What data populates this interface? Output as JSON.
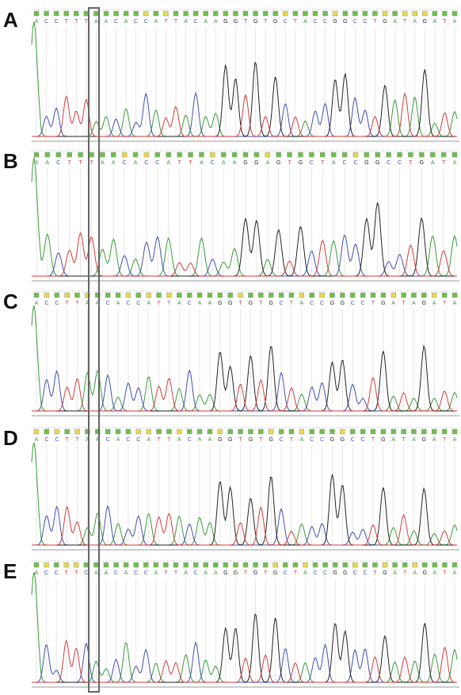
{
  "panels": [
    {
      "label": "A",
      "bases": [
        "A",
        "C",
        "C",
        "T",
        "T",
        "T",
        "A",
        "A",
        "C",
        "A",
        "C",
        "C",
        "A",
        "T",
        "T",
        "A",
        "C",
        "A",
        "A",
        "G",
        "G",
        "T",
        "G",
        "T",
        "G",
        "C",
        "T",
        "A",
        "C",
        "C",
        "G",
        "G",
        "C",
        "C",
        "T",
        "G",
        "A",
        "T",
        "A",
        "G",
        "A",
        "T",
        "A"
      ]
    },
    {
      "label": "B",
      "bases": [
        "A",
        "A",
        "C",
        "T",
        "T",
        "T",
        "A",
        "A",
        "C",
        "A",
        "C",
        "C",
        "A",
        "T",
        "T",
        "A",
        "C",
        "A",
        "A",
        "G",
        "G",
        "A",
        "G",
        "T",
        "G",
        "C",
        "T",
        "A",
        "C",
        "C",
        "G",
        "G",
        "C",
        "C",
        "T",
        "G",
        "A",
        "T",
        "A"
      ]
    },
    {
      "label": "C",
      "bases": [
        "A",
        "C",
        "C",
        "T",
        "T",
        "A",
        "A",
        "C",
        "A",
        "C",
        "C",
        "A",
        "T",
        "T",
        "A",
        "C",
        "A",
        "A",
        "G",
        "G",
        "T",
        "G",
        "T",
        "G",
        "C",
        "T",
        "A",
        "C",
        "C",
        "G",
        "G",
        "C",
        "C",
        "T",
        "G",
        "A",
        "T",
        "A",
        "G",
        "A",
        "T",
        "A"
      ]
    },
    {
      "label": "D",
      "bases": [
        "A",
        "C",
        "C",
        "T",
        "T",
        "A",
        "A",
        "C",
        "A",
        "C",
        "C",
        "A",
        "T",
        "T",
        "A",
        "C",
        "A",
        "A",
        "G",
        "G",
        "T",
        "G",
        "T",
        "G",
        "C",
        "T",
        "A",
        "C",
        "C",
        "G",
        "G",
        "C",
        "C",
        "T",
        "G",
        "A",
        "T",
        "A",
        "G",
        "A",
        "T",
        "A"
      ]
    },
    {
      "label": "E",
      "bases": [
        "A",
        "C",
        "C",
        "T",
        "T",
        "C",
        "A",
        "A",
        "C",
        "A",
        "C",
        "C",
        "A",
        "T",
        "T",
        "A",
        "C",
        "A",
        "A",
        "G",
        "G",
        "T",
        "G",
        "T",
        "G",
        "C",
        "T",
        "A",
        "C",
        "C",
        "G",
        "G",
        "C",
        "C",
        "T",
        "G",
        "A",
        "T",
        "A",
        "G",
        "A",
        "T",
        "A"
      ]
    }
  ]
}
